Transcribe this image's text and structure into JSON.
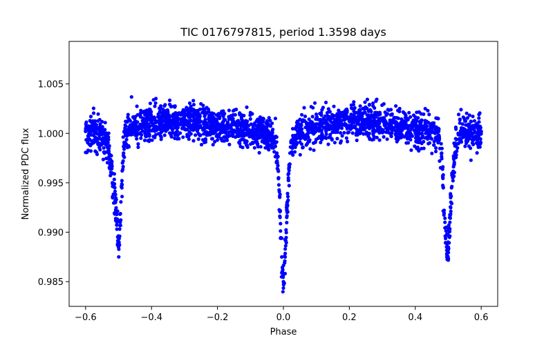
{
  "chart_data": {
    "type": "scatter",
    "title": "TIC 0176797815, period 1.3598 days",
    "xlabel": "Phase",
    "ylabel": "Normalized PDC flux",
    "xlim": [
      -0.65,
      0.65
    ],
    "ylim": [
      0.9825,
      1.0093
    ],
    "x_ticks": [
      -0.6,
      -0.4,
      -0.2,
      0.0,
      0.2,
      0.4,
      0.6
    ],
    "x_tick_labels": [
      "−0.6",
      "−0.4",
      "−0.2",
      "0.0",
      "0.2",
      "0.4",
      "0.6"
    ],
    "y_ticks": [
      0.985,
      0.99,
      0.995,
      1.0,
      1.005
    ],
    "y_tick_labels": [
      "0.985",
      "0.990",
      "0.995",
      "1.000",
      "1.005"
    ],
    "grid": false,
    "legend": "none",
    "colors": {
      "points": "#0000ff"
    },
    "series": [
      {
        "values_description_omitted": true,
        "x": [
          -0.6,
          -0.59,
          -0.58,
          -0.57,
          -0.56,
          -0.55,
          -0.54,
          -0.53,
          -0.52,
          -0.51,
          -0.505,
          -0.5,
          -0.495,
          -0.49,
          -0.485,
          -0.48,
          -0.47,
          -0.46,
          -0.45,
          -0.43,
          -0.4,
          -0.37,
          -0.34,
          -0.31,
          -0.28,
          -0.25,
          -0.22,
          -0.19,
          -0.16,
          -0.13,
          -0.1,
          -0.07,
          -0.05,
          -0.03,
          -0.02,
          -0.015,
          -0.01,
          -0.005,
          0.0,
          0.005,
          0.01,
          0.015,
          0.02,
          0.03,
          0.05,
          0.08,
          0.11,
          0.14,
          0.17,
          0.2,
          0.23,
          0.26,
          0.29,
          0.32,
          0.35,
          0.38,
          0.41,
          0.44,
          0.46,
          0.47,
          0.48,
          0.485,
          0.49,
          0.495,
          0.5,
          0.505,
          0.51,
          0.52,
          0.53,
          0.54,
          0.55,
          0.56,
          0.57,
          0.58,
          0.59,
          0.6
        ],
        "y": [
          1.0002,
          1.0,
          1.0003,
          1.0001,
          0.9999,
          1.0,
          0.9998,
          0.9985,
          0.996,
          0.993,
          0.991,
          0.9885,
          0.991,
          0.9945,
          0.998,
          1.0001,
          1.0003,
          1.0006,
          1.0008,
          1.0009,
          1.0011,
          1.0012,
          1.0013,
          1.0014,
          1.0013,
          1.0012,
          1.001,
          1.0008,
          1.0006,
          1.0004,
          1.0002,
          1.0001,
          1.0,
          0.9995,
          0.998,
          0.9955,
          0.9915,
          0.9875,
          0.985,
          0.9875,
          0.9915,
          0.9955,
          0.998,
          0.9995,
          1.0001,
          1.0004,
          1.0006,
          1.0008,
          1.001,
          1.0012,
          1.0014,
          1.0012,
          1.001,
          1.0008,
          1.0006,
          1.0004,
          1.0002,
          1.0001,
          1.0,
          0.9998,
          0.998,
          0.9945,
          0.991,
          0.9885,
          0.9885,
          0.991,
          0.9945,
          0.998,
          1.0,
          1.0001,
          1.0002,
          1.0001,
          1.0,
          1.0002,
          1.0001,
          1.0002
        ]
      }
    ]
  }
}
